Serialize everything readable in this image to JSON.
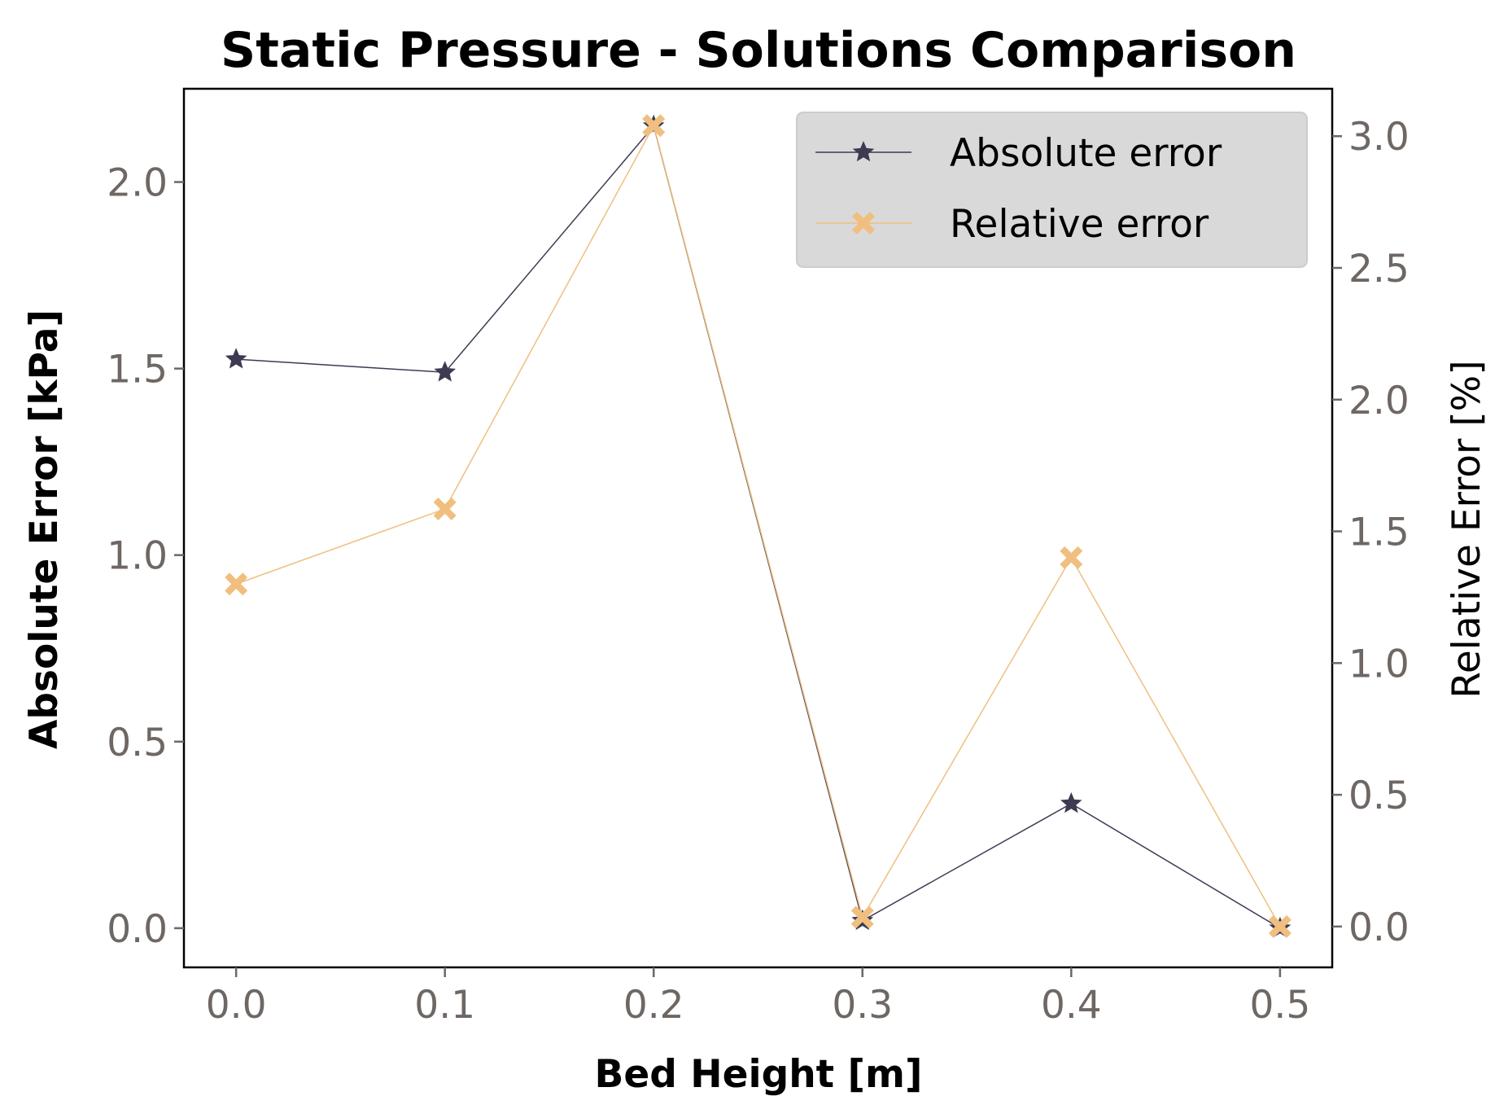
{
  "chart_data": {
    "type": "line",
    "title": "Static Pressure - Solutions Comparison",
    "xlabel": "Bed Height [m]",
    "ylabel": "Absolute Error [kPa]",
    "ylabel_right": "Relative Error [%]",
    "x": [
      0.0,
      0.1,
      0.2,
      0.3,
      0.4,
      0.5
    ],
    "xlim": [
      -0.025,
      0.525
    ],
    "ylim": [
      -0.105,
      2.25
    ],
    "ylim_right": [
      -0.155,
      3.18
    ],
    "xticks": [
      "0.0",
      "0.1",
      "0.2",
      "0.3",
      "0.4",
      "0.5"
    ],
    "yticks": [
      "0.0",
      "0.5",
      "1.0",
      "1.5",
      "2.0"
    ],
    "yticks_right": [
      "0.0",
      "0.5",
      "1.0",
      "1.5",
      "2.0",
      "2.5",
      "3.0"
    ],
    "grid": false,
    "legend_position": "top-right",
    "series": [
      {
        "name": "Absolute error",
        "axis": "left",
        "marker": "star",
        "color": "#3d3a52",
        "values": [
          1.525,
          1.49,
          2.15,
          0.02,
          0.334,
          0.0
        ]
      },
      {
        "name": "Relative error",
        "axis": "right",
        "marker": "x-filled",
        "color": "#f0bf7f",
        "values": [
          1.3,
          1.585,
          3.04,
          0.035,
          1.4,
          0.0
        ]
      }
    ]
  }
}
